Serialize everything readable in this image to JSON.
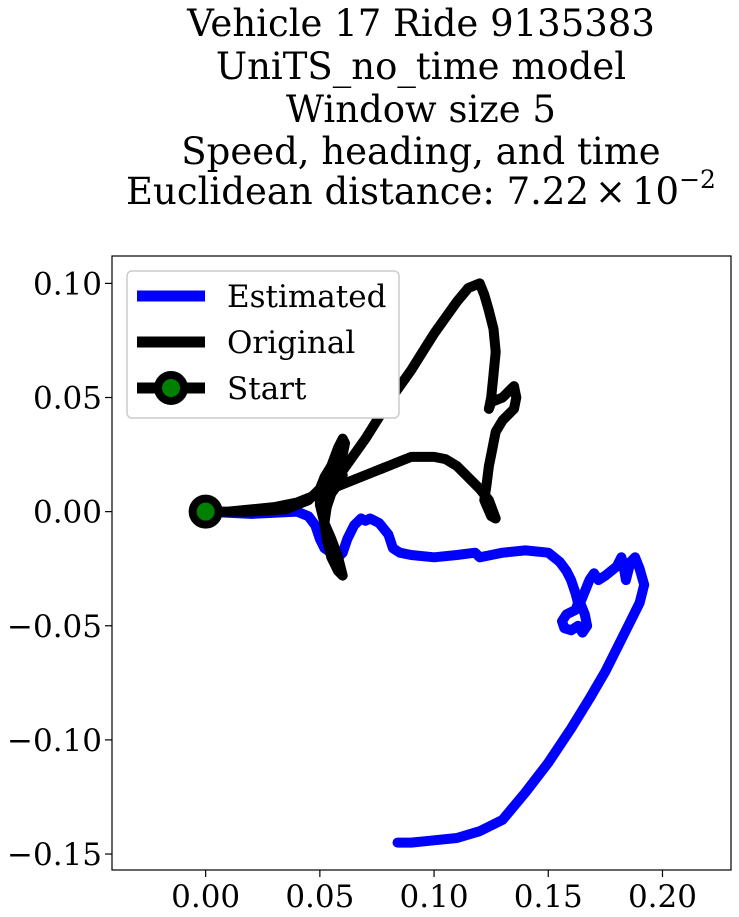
{
  "chart_data": {
    "type": "line",
    "title_lines": [
      "Vehicle 17 Ride 9135383",
      "UniTS_no_time model",
      "Window size 5",
      "Speed, heading, and time"
    ],
    "title_metric_label": "Euclidean distance: ",
    "title_metric_mantissa": "7.22",
    "title_metric_times": "×",
    "title_metric_base": "10",
    "title_metric_exponent": "−2",
    "xlabel": "",
    "ylabel": "",
    "xlim": [
      -0.041,
      0.23
    ],
    "ylim": [
      -0.157,
      0.112
    ],
    "xticks": [
      {
        "value": 0.0,
        "label": "0.00"
      },
      {
        "value": 0.05,
        "label": "0.05"
      },
      {
        "value": 0.1,
        "label": "0.10"
      },
      {
        "value": 0.15,
        "label": "0.15"
      },
      {
        "value": 0.2,
        "label": "0.20"
      }
    ],
    "yticks": [
      {
        "value": 0.1,
        "label": "0.10"
      },
      {
        "value": 0.05,
        "label": "0.05"
      },
      {
        "value": 0.0,
        "label": "0.00"
      },
      {
        "value": -0.05,
        "label": "−0.05"
      },
      {
        "value": -0.1,
        "label": "−0.10"
      },
      {
        "value": -0.15,
        "label": "−0.15"
      }
    ],
    "grid": false,
    "legend_position": "upper-left",
    "series": [
      {
        "name": "Estimated",
        "color": "#0000ff",
        "x": [
          0.0,
          0.02,
          0.04,
          0.045,
          0.048,
          0.05,
          0.052,
          0.055,
          0.058,
          0.06,
          0.062,
          0.065,
          0.068,
          0.07,
          0.072,
          0.076,
          0.08,
          0.082,
          0.085,
          0.09,
          0.1,
          0.11,
          0.118,
          0.12,
          0.125,
          0.13,
          0.14,
          0.15,
          0.155,
          0.158,
          0.16,
          0.162,
          0.163,
          0.162,
          0.158,
          0.156,
          0.157,
          0.16,
          0.163,
          0.165,
          0.167,
          0.166,
          0.164,
          0.166,
          0.168,
          0.17,
          0.172,
          0.175,
          0.18,
          0.182,
          0.183,
          0.184,
          0.186,
          0.188,
          0.19,
          0.192,
          0.19,
          0.185,
          0.18,
          0.175,
          0.168,
          0.16,
          0.15,
          0.14,
          0.13,
          0.12,
          0.11,
          0.1,
          0.09,
          0.084
        ],
        "y": [
          0.0,
          -0.001,
          0.0,
          -0.002,
          -0.006,
          -0.012,
          -0.016,
          -0.018,
          -0.02,
          -0.018,
          -0.012,
          -0.006,
          -0.003,
          -0.004,
          -0.003,
          -0.005,
          -0.01,
          -0.016,
          -0.018,
          -0.019,
          -0.02,
          -0.019,
          -0.018,
          -0.02,
          -0.019,
          -0.018,
          -0.017,
          -0.018,
          -0.022,
          -0.026,
          -0.03,
          -0.036,
          -0.04,
          -0.043,
          -0.045,
          -0.048,
          -0.051,
          -0.052,
          -0.05,
          -0.053,
          -0.05,
          -0.045,
          -0.04,
          -0.035,
          -0.03,
          -0.027,
          -0.03,
          -0.028,
          -0.024,
          -0.02,
          -0.024,
          -0.03,
          -0.022,
          -0.02,
          -0.025,
          -0.032,
          -0.04,
          -0.05,
          -0.06,
          -0.07,
          -0.082,
          -0.095,
          -0.11,
          -0.123,
          -0.135,
          -0.14,
          -0.143,
          -0.144,
          -0.145,
          -0.145
        ]
      },
      {
        "name": "Original",
        "color": "#000000",
        "x": [
          0.0,
          0.02,
          0.035,
          0.045,
          0.05,
          0.055,
          0.058,
          0.06,
          0.061,
          0.06,
          0.058,
          0.055,
          0.052,
          0.05,
          0.05,
          0.052,
          0.055,
          0.058,
          0.06,
          0.058,
          0.055,
          0.053,
          0.052,
          0.053,
          0.055,
          0.058,
          0.06,
          0.058,
          0.054,
          0.05,
          0.052,
          0.056,
          0.06,
          0.065,
          0.07,
          0.075,
          0.08,
          0.085,
          0.09,
          0.095,
          0.1,
          0.105,
          0.11,
          0.115,
          0.12,
          0.122,
          0.124,
          0.126,
          0.127,
          0.126,
          0.125,
          0.124,
          0.125,
          0.13,
          0.135,
          0.136,
          0.135,
          0.13,
          0.127,
          0.125,
          0.124,
          0.123,
          0.122,
          0.125,
          0.127,
          0.124,
          0.12,
          0.115,
          0.11,
          0.105,
          0.1,
          0.095,
          0.09,
          0.085,
          0.08,
          0.07,
          0.06,
          0.05,
          0.04,
          0.03,
          0.02,
          0.01,
          0.0
        ],
        "y": [
          0.0,
          0.0,
          0.001,
          0.005,
          0.01,
          0.015,
          0.02,
          0.025,
          0.03,
          0.032,
          0.028,
          0.02,
          0.015,
          0.01,
          0.003,
          -0.005,
          -0.012,
          -0.02,
          -0.028,
          -0.026,
          -0.02,
          -0.012,
          -0.005,
          0.002,
          0.008,
          0.012,
          0.016,
          0.018,
          0.015,
          0.01,
          0.008,
          0.012,
          0.018,
          0.025,
          0.032,
          0.04,
          0.048,
          0.055,
          0.062,
          0.07,
          0.078,
          0.085,
          0.092,
          0.098,
          0.1,
          0.095,
          0.088,
          0.08,
          0.07,
          0.06,
          0.05,
          0.045,
          0.048,
          0.05,
          0.055,
          0.05,
          0.045,
          0.04,
          0.035,
          0.025,
          0.02,
          0.012,
          0.005,
          -0.002,
          -0.003,
          0.005,
          0.01,
          0.015,
          0.02,
          0.023,
          0.024,
          0.024,
          0.024,
          0.022,
          0.02,
          0.016,
          0.012,
          0.008,
          0.004,
          0.002,
          0.001,
          0.0,
          0.0
        ]
      }
    ],
    "start": {
      "name": "Start",
      "x": 0.0,
      "y": 0.0,
      "color": "#008000",
      "edge_color": "#000000"
    }
  }
}
